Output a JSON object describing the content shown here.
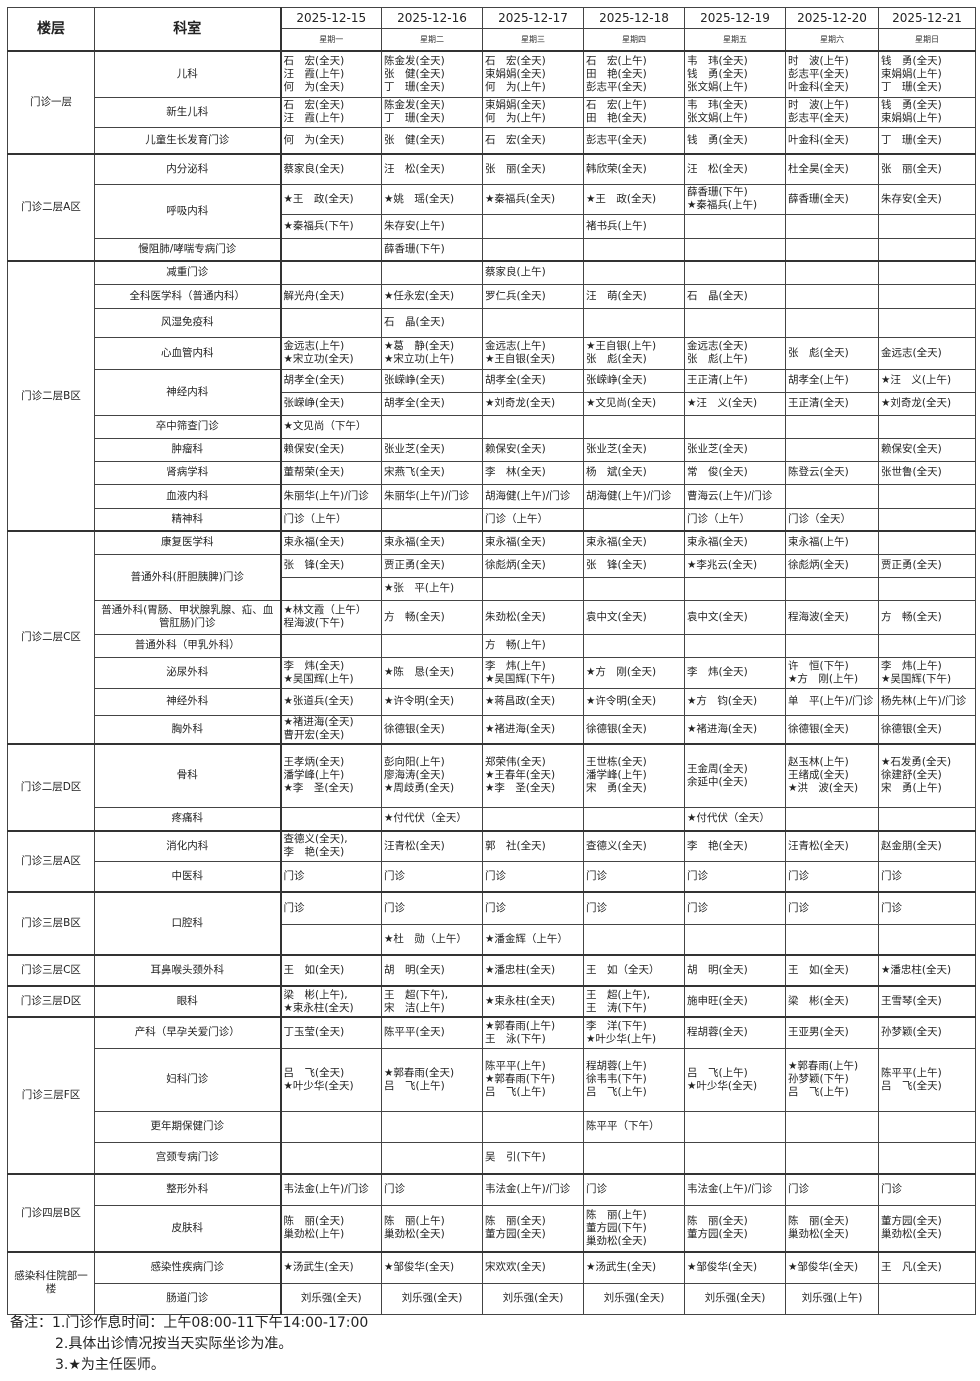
{
  "header": {
    "floor_label": "楼层",
    "dept_label": "科室",
    "dates": [
      "2025-12-15",
      "2025-12-16",
      "2025-12-17",
      "2025-12-18",
      "2025-12-19",
      "2025-12-20",
      "2025-12-21"
    ],
    "weekdays": [
      "星期一",
      "星期二",
      "星期三",
      "星期四",
      "星期五",
      "星期六",
      "星期日"
    ]
  },
  "floors": [
    {
      "name": "门诊一层",
      "depts": [
        {
          "name": "儿科",
          "rows": [
            [
              "石　宏(全天)\n汪　霞(上午)\n何　为(全天)",
              "陈金发(全天)\n张　健(全天)\n丁　珊(全天)",
              "石　宏(全天)\n束娟娟(全天)\n何　为(上午)",
              "石　宏(上午)\n田　艳(全天)\n彭志平(全天)",
              "韦　玮(全天)\n钱　勇(全天)\n张文娟(上午)",
              "时　波(上午)\n彭志平(全天)\n叶金科(全天)",
              "钱　勇(全天)\n束娟娟(上午)\n丁　珊(全天)"
            ]
          ]
        },
        {
          "name": "新生儿科",
          "rows": [
            [
              "石　宏(全天)\n汪　霞(上午)",
              "陈金发(全天)\n丁　珊(全天)",
              "束娟娟(全天)\n何　为(上午)",
              "石　宏(上午)\n田　艳(全天)",
              "韦　玮(全天)\n张文娟(上午)",
              "时　波(上午)\n彭志平(全天)",
              "钱　勇(全天)\n束娟娟(上午)"
            ]
          ]
        },
        {
          "name": "儿童生长发育门诊",
          "rows": [
            [
              "何　为(全天)",
              "张　健(全天)",
              "石　宏(全天)",
              "彭志平(全天)",
              "钱　勇(全天)",
              "叶金科(全天)",
              "丁　珊(全天)"
            ]
          ]
        }
      ]
    },
    {
      "name": "门诊二层A区",
      "depts": [
        {
          "name": "内分泌科",
          "rows": [
            [
              "蔡家良(全天)",
              "汪　松(全天)",
              "张　丽(全天)",
              "韩欣荣(全天)",
              "汪　松(全天)",
              "杜全昊(全天)",
              "张　丽(全天)"
            ]
          ]
        },
        {
          "name": "呼吸内科",
          "rows": [
            [
              "★王　政(全天)",
              "★姚　瑶(全天)",
              "★秦福兵(全天)",
              "★王　政(全天)",
              "薛香珊(下午)\n★秦福兵(上午)",
              "薛香珊(全天)",
              "朱存安(全天)"
            ],
            [
              "★秦福兵(下午)",
              "朱存安(上午)",
              "",
              "褚书兵(上午)",
              "",
              "",
              ""
            ]
          ]
        },
        {
          "name": "慢阻肺/哮喘专病门诊",
          "rows": [
            [
              "",
              "薛香珊(下午)",
              "",
              "",
              "",
              "",
              ""
            ]
          ]
        }
      ]
    },
    {
      "name": "门诊二层B区",
      "depts": [
        {
          "name": "减重门诊",
          "rows": [
            [
              "",
              "",
              "蔡家良(上午)",
              "",
              "",
              "",
              ""
            ]
          ]
        },
        {
          "name": "全科医学科（普通内科）",
          "rows": [
            [
              "解光舟(全天)",
              "★任永宏(全天)",
              "罗仁兵(全天)",
              "汪　萌(全天)",
              "石　晶(全天)",
              "",
              ""
            ]
          ]
        },
        {
          "name": "风湿免疫科",
          "rows": [
            [
              "",
              "石　晶(全天)",
              "",
              "",
              "",
              "",
              ""
            ]
          ]
        },
        {
          "name": "心血管内科",
          "rows": [
            [
              "金远志(上午)\n★宋立功(全天)",
              "★葛　静(全天)\n★宋立功(上午)",
              "金远志(上午)\n★王自银(全天)",
              "★王自银(上午)\n张　彪(全天)",
              "金远志(全天)\n张　彪(上午)",
              "张　彪(全天)",
              "金远志(全天)"
            ]
          ]
        },
        {
          "name": "神经内科",
          "rows": [
            [
              "胡孝全(全天)",
              "张嵘峥(全天)",
              "胡孝全(全天)",
              "张嵘峥(全天)",
              "王正清(上午)",
              "胡孝全(上午)",
              "★汪　义(上午)"
            ],
            [
              "张嵘峥(全天)",
              "胡孝全(全天)",
              "★刘奇龙(全天)",
              "★文见尚(全天)",
              "★汪　义(全天)",
              "王正清(全天)",
              "★刘奇龙(全天)"
            ]
          ]
        },
        {
          "name": "卒中筛查门诊",
          "rows": [
            [
              "★文见尚（下午）",
              "",
              "",
              "",
              "",
              "",
              ""
            ]
          ]
        },
        {
          "name": "肿瘤科",
          "rows": [
            [
              "赖保安(全天)",
              "张业芝(全天)",
              "赖保安(全天)",
              "张业芝(全天)",
              "张业芝(全天)",
              "",
              "赖保安(全天)"
            ]
          ]
        },
        {
          "name": "肾病学科",
          "rows": [
            [
              "董帮荣(全天)",
              "宋燕飞(全天)",
              "李　林(全天)",
              "杨　斌(全天)",
              "常　俊(全天)",
              "陈登云(全天)",
              "张世鲁(全天)"
            ]
          ]
        },
        {
          "name": "血液内科",
          "rows": [
            [
              "朱丽华(上午)/门诊",
              "朱丽华(上午)/门诊",
              "胡海健(上午)/门诊",
              "胡海健(上午)/门诊",
              "曹海云(上午)/门诊",
              "",
              ""
            ]
          ]
        },
        {
          "name": "精神科",
          "rows": [
            [
              "门诊（上午）",
              "",
              "门诊（上午）",
              "",
              "门诊（上午）",
              "门诊（全天）",
              ""
            ]
          ]
        }
      ]
    },
    {
      "name": "门诊二层C区",
      "depts": [
        {
          "name": "康复医学科",
          "rows": [
            [
              "束永福(全天)",
              "束永福(全天)",
              "束永福(全天)",
              "束永福(全天)",
              "束永福(全天)",
              "束永福(上午)",
              ""
            ]
          ]
        },
        {
          "name": "普通外科(肝胆胰脾)门诊",
          "rows": [
            [
              "张　锋(全天)",
              "贾正勇(全天)",
              "徐彪炳(全天)",
              "张　锋(全天)",
              "★李兆云(全天)",
              "徐彪炳(全天)",
              "贾正勇(全天)"
            ],
            [
              "",
              "★张　平(上午)",
              "",
              "",
              "",
              "",
              ""
            ]
          ]
        },
        {
          "name": "普通外科(胃肠、甲状腺乳腺、疝、血管肛肠)门诊",
          "rows": [
            [
              "★林文霞（上午）\n程海波(下午)",
              "方　畅(全天)",
              "朱劲松(全天)",
              "袁中文(全天)",
              "袁中文(全天)",
              "程海波(全天)",
              "方　畅(全天)"
            ]
          ]
        },
        {
          "name": "普通外科（甲乳外科）",
          "rows": [
            [
              "",
              "",
              "方　畅(上午)",
              "",
              "",
              "",
              ""
            ]
          ]
        },
        {
          "name": "泌尿外科",
          "rows": [
            [
              "李　炜(全天)\n★吴国辉(上午)",
              "★陈　恳(全天)",
              "李　炜(上午)\n★吴国辉(下午)",
              "★方　刚(全天)",
              "李　炜(全天)",
              "许　恒(下午)\n★方　刚(上午)",
              "李　炜(上午)\n★吴国辉(下午)"
            ]
          ]
        },
        {
          "name": "神经外科",
          "rows": [
            [
              "★张道兵(全天)",
              "★许令明(全天)",
              "★蒋昌政(全天)",
              "★许令明(全天)",
              "★方　钧(全天)",
              "单　平(上午)/门诊",
              "杨先林(上午)/门诊"
            ]
          ]
        },
        {
          "name": "胸外科",
          "rows": [
            [
              "★褚进海(全天)\n曹开宏(全天)",
              "徐德银(全天)",
              "★褚进海(全天)",
              "徐德银(全天)",
              "★褚进海(全天)",
              "徐德银(全天)",
              "徐德银(全天)"
            ]
          ]
        }
      ]
    },
    {
      "name": "门诊二层D区",
      "depts": [
        {
          "name": "骨科",
          "rows": [
            [
              "王孝炳(全天)\n潘学峰(上午)\n★李　圣(全天)",
              "彭向阳(上午)\n廖海涛(全天)\n★周歧勇(全天)",
              "郑荣伟(全天)\n★王春年(全天)\n★李　圣(全天)",
              "王世栋(全天)\n潘学峰(上午)\n宋　勇(全天)",
              "王金周(全天)\n余延中(全天)",
              "赵玉林(上午)\n王绪成(全天)\n★洪　波(全天)",
              "★石发勇(全天)\n徐建舒(全天)\n宋　勇(上午)"
            ]
          ]
        },
        {
          "name": "疼痛科",
          "rows": [
            [
              "",
              "★付代伏（全天）",
              "",
              "",
              "★付代伏（全天）",
              "",
              ""
            ]
          ]
        }
      ]
    },
    {
      "name": "门诊三层A区",
      "depts": [
        {
          "name": "消化内科",
          "rows": [
            [
              "查德义(全天),\n李　艳(全天)",
              "汪青松(全天)",
              "郭　社(全天)",
              "查德义(全天)",
              "李　艳(全天)",
              "汪青松(全天)",
              "赵金朋(全天)"
            ]
          ]
        },
        {
          "name": "中医科",
          "rows": [
            [
              "门诊",
              "门诊",
              "门诊",
              "门诊",
              "门诊",
              "门诊",
              "门诊"
            ]
          ]
        }
      ]
    },
    {
      "name": "门诊三层B区",
      "depts": [
        {
          "name": "口腔科",
          "rows": [
            [
              "门诊",
              "门诊",
              "门诊",
              "门诊",
              "门诊",
              "门诊",
              "门诊"
            ],
            [
              "",
              "★杜　勋（上午）",
              "★潘金辉（上午）",
              "",
              "",
              "",
              ""
            ]
          ]
        }
      ]
    },
    {
      "name": "门诊三层C区",
      "depts": [
        {
          "name": "耳鼻喉头颈外科",
          "rows": [
            [
              "王　如(全天)",
              "胡　明(全天)",
              "★潘忠柱(全天)",
              "王　如（全天）",
              "胡　明(全天)",
              "王　如(全天)",
              "★潘忠柱(全天)"
            ]
          ]
        }
      ]
    },
    {
      "name": "门诊三层D区",
      "depts": [
        {
          "name": "眼科",
          "rows": [
            [
              "梁　彬(上午),\n★束永柱(全天)",
              "王　超(下午),\n宋　洁(上午)",
              "★束永柱(全天)",
              "王　超(上午),\n王　涛(下午)",
              "施申旺(全天)",
              "梁　彬(全天)",
              "王雪琴(全天)"
            ]
          ]
        }
      ]
    },
    {
      "name": "门诊三层F区",
      "depts": [
        {
          "name": "产科（早孕关爱门诊）",
          "rows": [
            [
              "丁玉莹(全天)",
              "陈平平(全天)",
              "★郭春雨(上午)\n王　泳(下午)",
              "李　洋(下午)\n★叶少华(上午)",
              "程胡蓉(全天)",
              "王亚男(全天)",
              "孙梦颖(全天)"
            ]
          ]
        },
        {
          "name": "妇科门诊",
          "rows": [
            [
              "吕　飞(全天)\n★叶少华(全天)",
              "★郭春雨(全天)\n吕　飞(上午)",
              "陈平平(上午)\n★郭春雨(下午)\n吕　飞(上午)",
              "程胡蓉(上午)\n徐韦韦(下午)\n吕　飞(上午)",
              "吕　飞(上午)\n★叶少华(全天)",
              "★郭春雨(上午)\n孙梦颖(下午)\n吕　飞(上午)",
              "陈平平(上午)\n吕　飞(全天)"
            ]
          ]
        },
        {
          "name": "更年期保健门诊",
          "rows": [
            [
              "",
              "",
              "",
              "陈平平（下午）",
              "",
              "",
              ""
            ]
          ]
        },
        {
          "name": "宫颈专病门诊",
          "rows": [
            [
              "",
              "",
              "吴　引(下午)",
              "",
              "",
              "",
              ""
            ]
          ]
        }
      ]
    },
    {
      "name": "门诊四层B区",
      "depts": [
        {
          "name": "整形外科",
          "rows": [
            [
              "韦法金(上午)/门诊",
              "门诊",
              "韦法金(上午)/门诊",
              "门诊",
              "韦法金(上午)/门诊",
              "门诊",
              "门诊"
            ]
          ]
        },
        {
          "name": "皮肤科",
          "rows": [
            [
              "陈　丽(全天)\n巢劲松(上午)",
              "陈　丽(上午)\n巢劲松(全天)",
              "陈　丽(全天)\n董方园(全天)",
              "陈　丽(上午)\n董方园(下午)\n巢劲松(全天)",
              "陈　丽(全天)\n董方园(全天)",
              "陈　丽(全天)\n巢劲松(全天)",
              "董方园(全天)\n巢劲松(全天)"
            ]
          ]
        }
      ]
    },
    {
      "name": "感染科住院部一楼",
      "depts": [
        {
          "name": "感染性疾病门诊",
          "rows": [
            [
              "★汤武生(全天)",
              "★邹俊华(全天)",
              "宋欢欢(全天)",
              "★汤武生(全天)",
              "★邹俊华(全天)",
              "★邹俊华(全天)",
              "王　凡(全天)"
            ]
          ]
        },
        {
          "name": "肠道门诊",
          "centered": true,
          "rows": [
            [
              "刘乐强(全天)",
              "刘乐强(全天)",
              "刘乐强(全天)",
              "刘乐强(全天)",
              "刘乐强(全天)",
              "刘乐强(上午)",
              ""
            ]
          ]
        }
      ]
    }
  ],
  "notes": {
    "line1": "备注：1.门诊作息时间：上午08:00-11下午14:00-17:00",
    "line2": "2.具体出诊情况按当天实际坐诊为准。",
    "line3": "3.★为主任医师。"
  }
}
